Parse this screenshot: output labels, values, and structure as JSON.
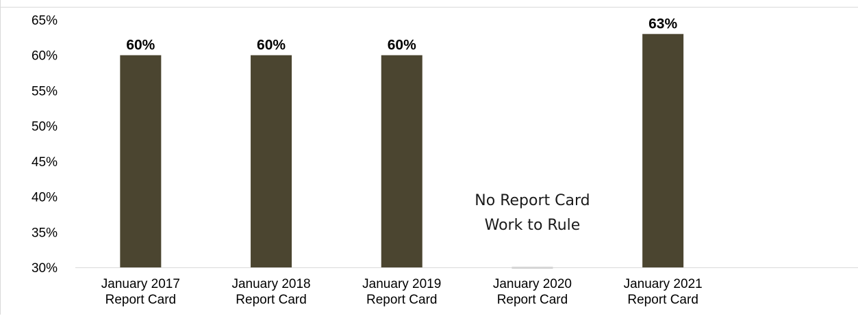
{
  "chart_data": {
    "type": "bar",
    "title": "",
    "xlabel": "",
    "ylabel": "",
    "ylim": [
      0.3,
      0.65
    ],
    "yticks": [
      0.3,
      0.35,
      0.4,
      0.45,
      0.5,
      0.55,
      0.6,
      0.65
    ],
    "ytick_labels": [
      "30%",
      "35%",
      "40%",
      "45%",
      "50%",
      "55%",
      "60%",
      "65%"
    ],
    "categories": [
      [
        "January 2017",
        "Report Card"
      ],
      [
        "January 2018",
        "Report Card"
      ],
      [
        "January 2019",
        "Report Card"
      ],
      [
        "January 2020",
        "Report Card"
      ],
      [
        "January 2021",
        "Report Card"
      ]
    ],
    "values": [
      0.6,
      0.6,
      0.6,
      null,
      0.63
    ],
    "data_labels": [
      "60%",
      "60%",
      "60%",
      "",
      "63%"
    ],
    "bar_color": "#4b4530",
    "missing_marker_color": "#a6a6a6",
    "grid": false,
    "annotation": {
      "category_index": 3,
      "lines": [
        "No Report Card",
        "Work to Rule"
      ]
    }
  }
}
